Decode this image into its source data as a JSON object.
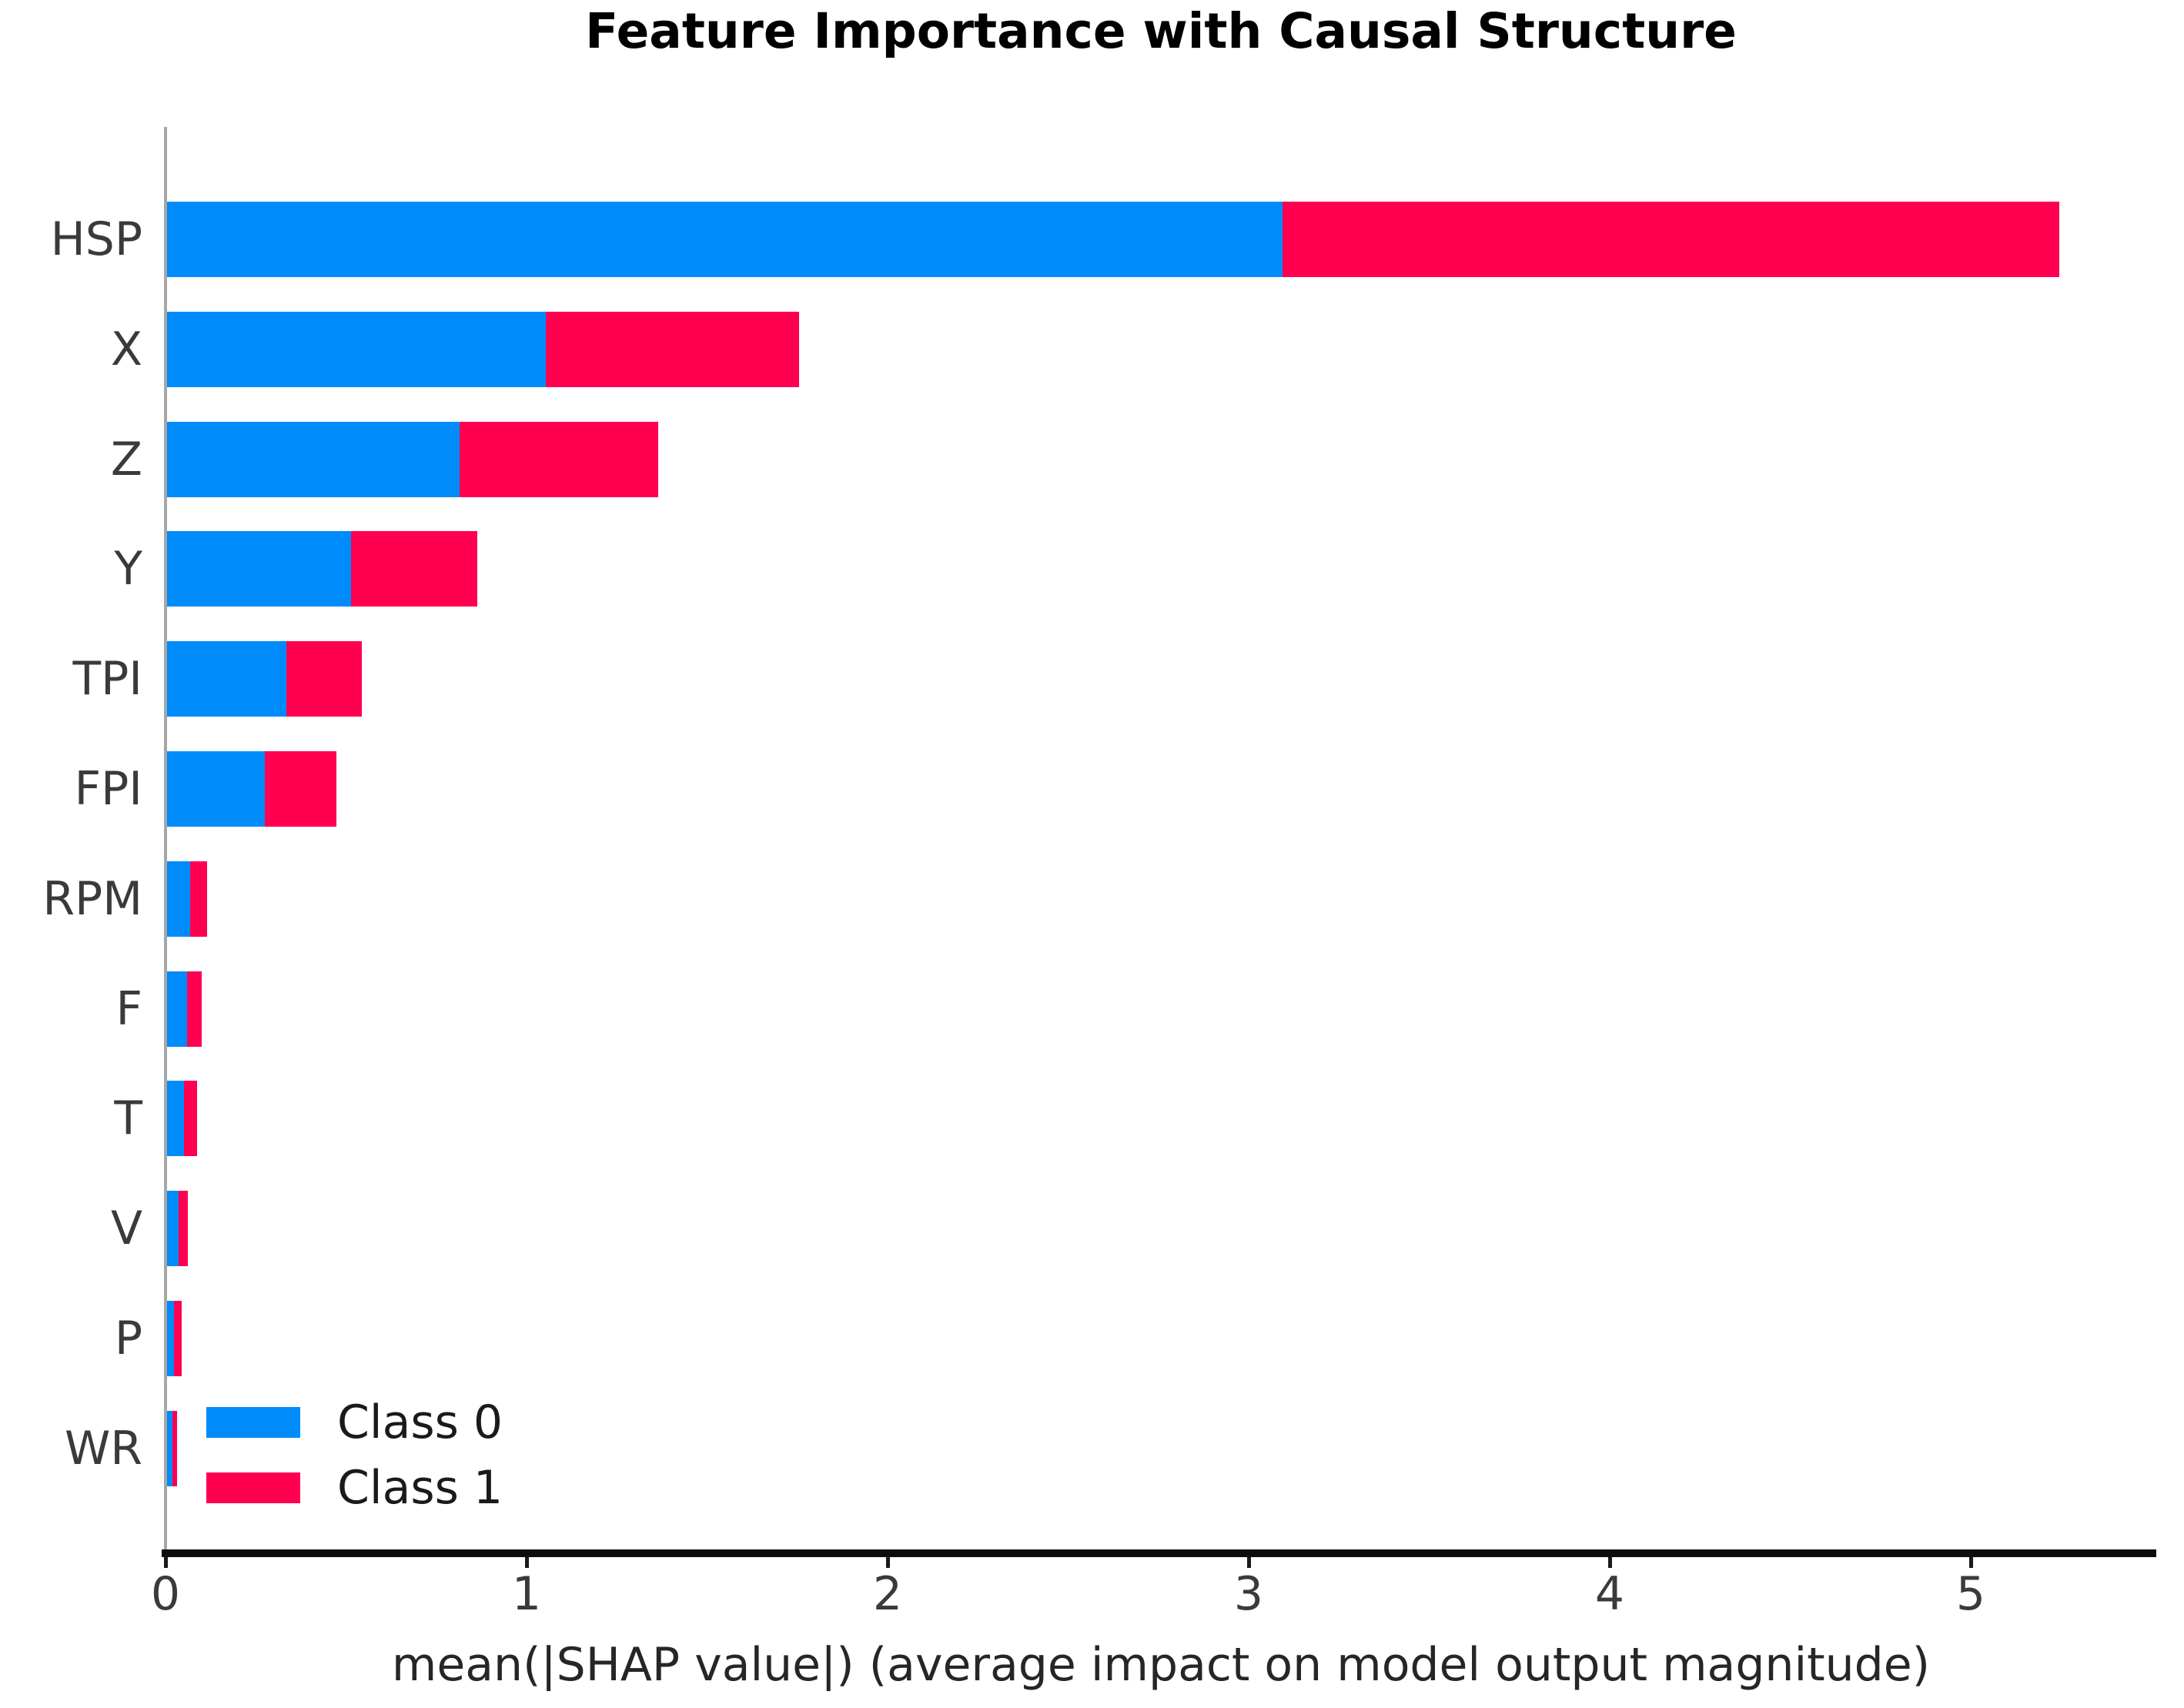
{
  "title": "Feature Importance with Causal Structure",
  "chart_data": {
    "type": "bar",
    "orientation": "horizontal",
    "stacked": true,
    "title": "Feature Importance with Causal Structure",
    "xlabel": "mean(|SHAP value|) (average impact on model output magnitude)",
    "ylabel": "",
    "categories": [
      "HSP",
      "X",
      "Z",
      "Y",
      "TPI",
      "FPI",
      "RPM",
      "F",
      "T",
      "V",
      "P",
      "WR"
    ],
    "series": [
      {
        "name": "Class 0",
        "color": "#008bfb",
        "values": [
          3.09,
          1.05,
          0.81,
          0.51,
          0.33,
          0.27,
          0.064,
          0.055,
          0.046,
          0.032,
          0.02,
          0.015
        ]
      },
      {
        "name": "Class 1",
        "color": "#ff0051",
        "values": [
          2.15,
          0.7,
          0.55,
          0.35,
          0.21,
          0.2,
          0.046,
          0.041,
          0.038,
          0.026,
          0.021,
          0.013
        ]
      }
    ],
    "xlim": [
      0,
      5.52
    ],
    "xticks": [
      "0",
      "1",
      "2",
      "3",
      "4",
      "5"
    ],
    "xtick_values": [
      0,
      1,
      2,
      3,
      4,
      5
    ],
    "grid": false,
    "legend_position": "lower-left-inside",
    "bar_sort_order": "descending-total"
  },
  "legend": {
    "items": [
      {
        "label": "Class 0",
        "color": "#008bfb"
      },
      {
        "label": "Class 1",
        "color": "#ff0051"
      }
    ]
  }
}
